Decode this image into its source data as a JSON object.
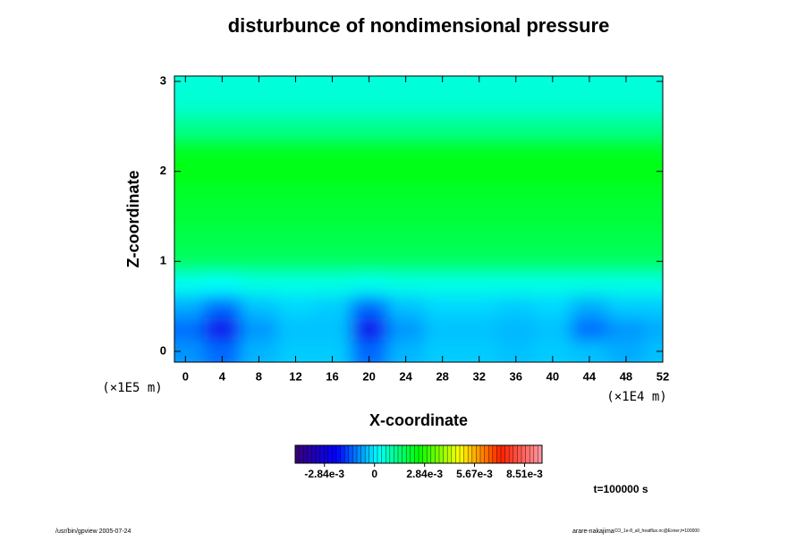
{
  "chart_data": {
    "type": "contour",
    "title": "disturbunce of nondimensional pressure",
    "xlabel": "X-coordinate",
    "ylabel": "Z-coordinate",
    "xunit": "(×1E4 m)",
    "yunit": "(×1E5 m)",
    "xlim": [
      -1.2,
      52
    ],
    "ylim": [
      -0.12,
      3.06
    ],
    "xticks": [
      0,
      4,
      8,
      12,
      16,
      20,
      24,
      28,
      32,
      36,
      40,
      44,
      48,
      52
    ],
    "yticks": [
      0,
      1,
      2,
      3
    ],
    "x": [
      0,
      4,
      8,
      12,
      16,
      20,
      24,
      28,
      32,
      36,
      40,
      44,
      48,
      52
    ],
    "y": [
      0,
      0.25,
      0.5,
      0.75,
      1,
      1.25,
      1.5,
      1.75,
      2,
      2.25,
      2.5,
      2.75,
      3
    ],
    "z": [
      [
        -0.0008,
        -0.0012,
        -0.0005,
        -0.0003,
        -0.0003,
        -0.0012,
        -0.0005,
        -0.0003,
        -0.0003,
        -0.0004,
        -0.0003,
        -0.0004,
        -0.0006,
        -0.0004
      ],
      [
        -0.0012,
        -0.0025,
        -0.0008,
        -0.0004,
        -0.0004,
        -0.0025,
        -0.0008,
        -0.0004,
        -0.0004,
        -0.0005,
        -0.0004,
        -0.0012,
        -0.0008,
        -0.0006
      ],
      [
        -0.0006,
        -0.0012,
        -0.0004,
        -0.0002,
        -0.0003,
        -0.0012,
        -0.0004,
        -0.0002,
        -0.0002,
        -0.0003,
        -0.0002,
        -0.0006,
        -0.0003,
        -0.0003
      ],
      [
        0.0003,
        0.0002,
        0.0004,
        0.0004,
        0.0004,
        0.0003,
        0.0004,
        0.0004,
        0.0004,
        0.0004,
        0.0004,
        0.0004,
        0.0004,
        0.0004
      ],
      [
        0.0016,
        0.0016,
        0.0016,
        0.0016,
        0.0016,
        0.0016,
        0.0016,
        0.0016,
        0.0016,
        0.0016,
        0.0016,
        0.0016,
        0.0016,
        0.0016
      ],
      [
        0.0018,
        0.0018,
        0.0018,
        0.0018,
        0.0018,
        0.0018,
        0.0018,
        0.0018,
        0.0018,
        0.0018,
        0.0018,
        0.0018,
        0.0018,
        0.0018
      ],
      [
        0.002,
        0.002,
        0.002,
        0.002,
        0.002,
        0.002,
        0.002,
        0.002,
        0.002,
        0.002,
        0.002,
        0.002,
        0.002,
        0.002
      ],
      [
        0.0021,
        0.0021,
        0.0021,
        0.0021,
        0.0021,
        0.0021,
        0.0021,
        0.0021,
        0.0021,
        0.0021,
        0.0021,
        0.0021,
        0.0021,
        0.0021
      ],
      [
        0.0024,
        0.0024,
        0.0024,
        0.0024,
        0.0024,
        0.0024,
        0.0024,
        0.0024,
        0.0024,
        0.0024,
        0.0024,
        0.0024,
        0.0024,
        0.0024
      ],
      [
        0.0022,
        0.0022,
        0.0022,
        0.0022,
        0.0022,
        0.0022,
        0.0022,
        0.0022,
        0.0022,
        0.0022,
        0.0022,
        0.0022,
        0.0022,
        0.0022
      ],
      [
        0.0012,
        0.0012,
        0.0012,
        0.0012,
        0.0012,
        0.0012,
        0.0012,
        0.0012,
        0.0012,
        0.0012,
        0.0012,
        0.0012,
        0.0012,
        0.0012
      ],
      [
        0.0006,
        0.0006,
        0.0006,
        0.0006,
        0.0006,
        0.0006,
        0.0006,
        0.0006,
        0.0006,
        0.0006,
        0.0006,
        0.0006,
        0.0006,
        0.0006
      ],
      [
        0.0005,
        0.0005,
        0.0005,
        0.0005,
        0.0005,
        0.0005,
        0.0005,
        0.0005,
        0.0005,
        0.0005,
        0.0005,
        0.0005,
        0.0005,
        0.0005
      ]
    ],
    "zlim": [
      -0.0045,
      0.0095
    ],
    "colormap": [
      "#3a0078",
      "#0000ff",
      "#00ffff",
      "#00ff00",
      "#ffff00",
      "#ff2000",
      "#ff9aa8"
    ],
    "zticks": [
      {
        "value": -0.00284,
        "label": "-2.84e-3"
      },
      0,
      {
        "value": 0.00284,
        "label": "2.84e-3"
      },
      {
        "value": 0.00567,
        "label": "5.67e-3"
      },
      {
        "value": 0.00851,
        "label": "8.51e-3"
      }
    ],
    "time_label": "t=100000 s",
    "footer_left": "/usr/bin/gpview 2005-07-24",
    "footer_right": "arare-nakajima",
    "footer_right_small": "CO_1e-8_all_heatflux.nc@Exner,t=100000"
  }
}
